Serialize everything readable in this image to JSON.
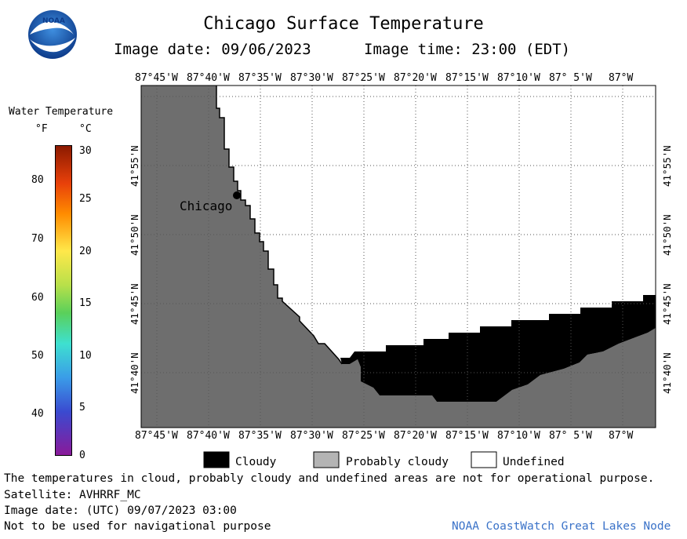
{
  "header": {
    "title": "Chicago Surface Temperature",
    "image_date": "Image date: 09/06/2023",
    "image_time": "Image time: 23:00 (EDT)",
    "logo_text": "NOAA"
  },
  "colorbar": {
    "title": "Water Temperature",
    "unit_f": "°F",
    "unit_c": "°C",
    "f_ticks": [
      "80",
      "70",
      "60",
      "50",
      "40"
    ],
    "c_ticks": [
      "30",
      "25",
      "20",
      "15",
      "10",
      "5",
      "0"
    ]
  },
  "map": {
    "lon_labels": [
      "87°45'W",
      "87°40'W",
      "87°35'W",
      "87°30'W",
      "87°25'W",
      "87°20'W",
      "87°15'W",
      "87°10'W",
      "87° 5'W",
      "87°W"
    ],
    "lat_labels": [
      "41°55'N",
      "41°50'N",
      "41°45'N",
      "41°40'N"
    ],
    "city_label": "Chicago",
    "colors": {
      "land": "#6e6e6e",
      "cloudy": "#000000",
      "undefined": "#ffffff"
    }
  },
  "legend": {
    "cloudy": "Cloudy",
    "probably_cloudy": "Probably cloudy",
    "undefined": "Undefined"
  },
  "footer": {
    "disclaimer": "The temperatures in cloud, probably cloudy and undefined areas are not for operational purpose.",
    "satellite": "Satellite: AVHRRF_MC",
    "utc_date": "Image date: (UTC) 09/07/2023  03:00",
    "nav_warning": "Not to be used for navigational purpose",
    "node": "NOAA CoastWatch Great Lakes Node"
  }
}
